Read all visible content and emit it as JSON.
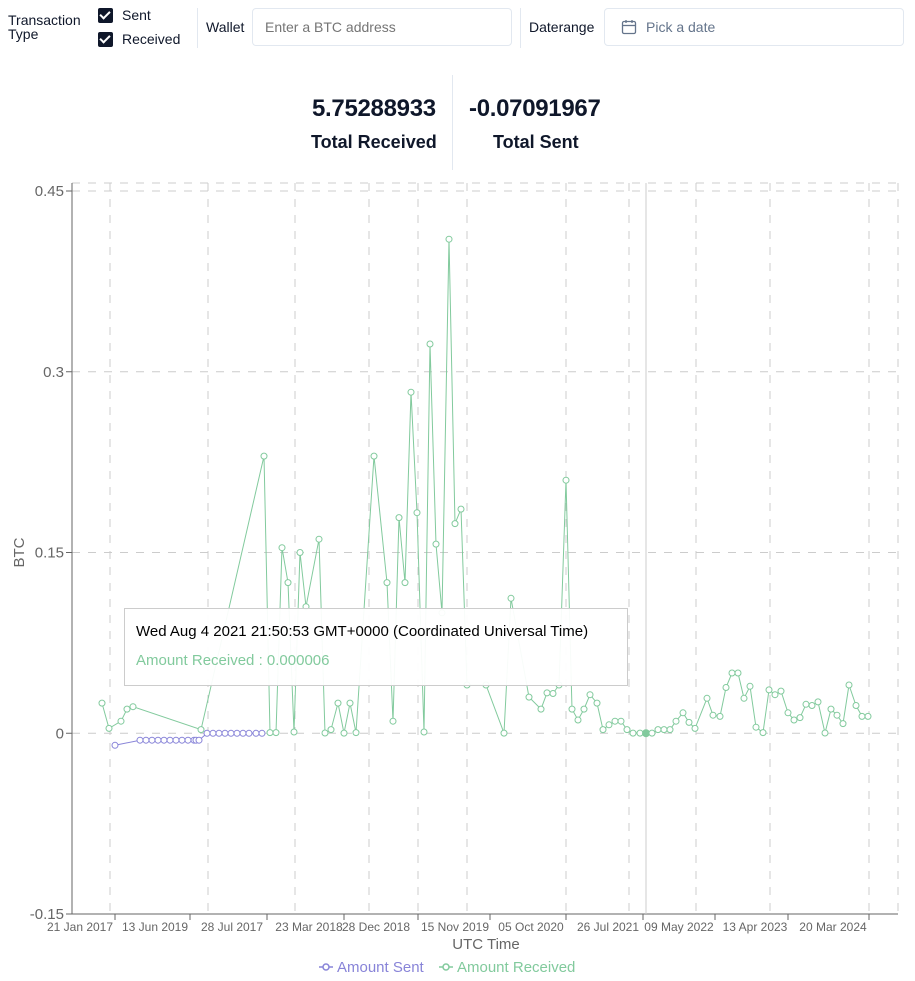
{
  "filters": {
    "transaction_type_label": "Transaction\nType",
    "sent_label": "Sent",
    "received_label": "Received",
    "wallet_label": "Wallet",
    "wallet_placeholder": "Enter a BTC address",
    "daterange_label": "Daterange",
    "date_placeholder": "Pick a date"
  },
  "stats": {
    "total_received_value": "5.75288933",
    "total_received_label": "Total Received",
    "total_sent_value": "-0.07091967",
    "total_sent_label": "Total Sent"
  },
  "tooltip": {
    "date": "Wed Aug 4 2021 21:50:53 GMT+0000 (Coordinated Universal Time)",
    "amount_label": "Amount Received",
    "amount_value": "0.000006"
  },
  "colors": {
    "sent": "#8884d8",
    "received": "#82ca9d",
    "grid": "#cccccc",
    "axis": "#666666"
  },
  "chart_data": {
    "type": "line",
    "xlabel": "UTC Time",
    "ylabel": "BTC",
    "ylim": [
      -0.15,
      0.45
    ],
    "yticks": [
      "-0.15",
      "0",
      "0.15",
      "0.3",
      "0.45"
    ],
    "xticks": [
      "21 Jan 2017",
      "13 Jun 2019",
      "28 Jul 2017",
      "23 Mar 2018",
      "28 Dec 2018",
      "15 Nov 2019",
      "05 Oct 2020",
      "26 Jul 2021",
      "09 May 2022",
      "13 Apr 2023",
      "20 Mar 2024"
    ],
    "grid": true,
    "legend_position": "bottom",
    "series": [
      {
        "name": "Amount Sent",
        "values": [
          -0.01,
          -0.0058,
          -0.0058,
          -0.0058,
          -0.0058,
          -0.0058,
          -0.0058,
          -0.0058,
          -0.0058,
          -0.0058,
          -0.0058,
          -0.0058,
          -0.0058,
          0,
          0,
          0,
          0,
          0,
          0,
          0,
          0,
          0,
          0
        ]
      },
      {
        "name": "Amount Received",
        "values": [
          0.025,
          0.004,
          0.01,
          0.02,
          0.022,
          0.003,
          0.23,
          0.0005,
          0.0005,
          0.154,
          0.125,
          0.001,
          0.15,
          0.105,
          0.161,
          0.0002,
          0.003,
          0.025,
          0.0001,
          0.025,
          0.0005,
          0.23,
          0.125,
          0.01,
          0.179,
          0.125,
          0.283,
          0.183,
          0.001,
          0.323,
          0.157,
          0.1,
          0.41,
          0.174,
          0.186,
          0.04,
          0.04,
          0.0001,
          0.112,
          0.03,
          0.02,
          0.0335,
          0.033,
          0.04,
          0.21,
          0.02,
          0.011,
          0.02,
          0.032,
          0.025,
          0.003,
          0.007,
          0.01,
          0.01,
          0.003,
          0.0001,
          0.0001,
          6e-06,
          0.0001,
          0.003,
          0.003,
          0.003,
          0.01,
          0.017,
          0.009,
          0.004,
          0.029,
          0.015,
          0.014,
          0.038,
          0.05,
          0.05,
          0.029,
          0.039,
          0.005,
          0.0005,
          0.036,
          0.032,
          0.035,
          0.017,
          0.011,
          0.013,
          0.024,
          0.023,
          0.026,
          0.0002,
          0.02,
          0.015,
          0.008,
          0.04,
          0.023,
          0.014,
          0.014
        ]
      }
    ]
  }
}
